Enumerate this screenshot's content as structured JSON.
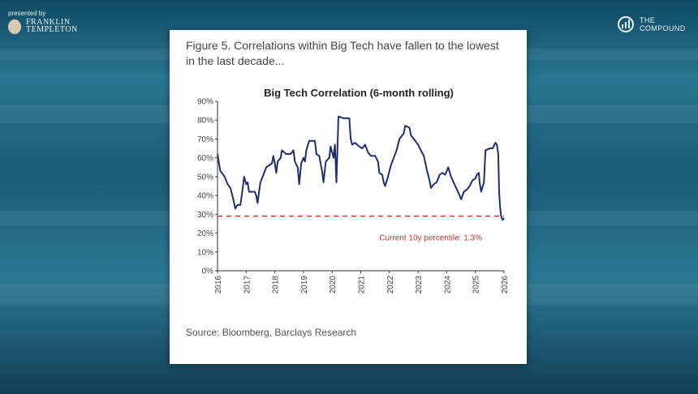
{
  "branding": {
    "presented_by": "presented by",
    "sponsor_line1": "FRANKLIN",
    "sponsor_line2": "TEMPLETON",
    "show_line1": "THE",
    "show_line2": "COMPOUND"
  },
  "figure": {
    "title": "Figure 5. Correlations within Big Tech have fallen to the lowest in the last decade...",
    "source": "Source: Bloomberg, Barclays Research"
  },
  "chart_data": {
    "type": "line",
    "title": "Big Tech Correlation (6-month rolling)",
    "xlabel": "",
    "ylabel": "",
    "xlim": [
      2016,
      2026
    ],
    "ylim": [
      0,
      90
    ],
    "x_ticks": [
      "2016",
      "2017",
      "2018",
      "2019",
      "2020",
      "2021",
      "2022",
      "2023",
      "2024",
      "2025",
      "2026"
    ],
    "y_ticks": [
      "0%",
      "10%",
      "20%",
      "30%",
      "40%",
      "50%",
      "60%",
      "70%",
      "80%",
      "90%"
    ],
    "grid": false,
    "line_color": "#1f2f6e",
    "reference_line": {
      "value": 29,
      "color": "#d0343a",
      "style": "dashed",
      "label": "Current 10y percentile: 1.3%"
    },
    "series": [
      {
        "x": [
          2016.0,
          2016.05,
          2016.1,
          2016.25,
          2016.35,
          2016.45,
          2016.55,
          2016.62,
          2016.7,
          2016.8,
          2016.88,
          2016.93,
          2017.0,
          2017.05,
          2017.1,
          2017.3,
          2017.35,
          2017.4,
          2017.45,
          2017.5,
          2017.6,
          2017.7,
          2017.8,
          2017.9,
          2017.95,
          2018.0,
          2018.05,
          2018.1,
          2018.2,
          2018.25,
          2018.4,
          2018.55,
          2018.65,
          2018.7,
          2018.8,
          2018.85,
          2018.92,
          2019.0,
          2019.05,
          2019.1,
          2019.2,
          2019.4,
          2019.45,
          2019.55,
          2019.65,
          2019.7,
          2019.78,
          2019.9,
          2019.95,
          2020.05,
          2020.1,
          2020.15,
          2020.22,
          2020.4,
          2020.6,
          2020.65,
          2020.7,
          2020.8,
          2020.95,
          2021.05,
          2021.15,
          2021.25,
          2021.35,
          2021.5,
          2021.6,
          2021.65,
          2021.75,
          2021.8,
          2021.85,
          2021.95,
          2022.05,
          2022.15,
          2022.25,
          2022.35,
          2022.45,
          2022.5,
          2022.55,
          2022.7,
          2022.75,
          2022.85,
          2023.0,
          2023.1,
          2023.2,
          2023.3,
          2023.4,
          2023.45,
          2023.55,
          2023.65,
          2023.75,
          2023.85,
          2023.95,
          2024.05,
          2024.15,
          2024.3,
          2024.45,
          2024.5,
          2024.6,
          2024.7,
          2024.8,
          2024.9,
          2025.0,
          2025.05,
          2025.12,
          2025.15,
          2025.2,
          2025.3,
          2025.35,
          2025.5,
          2025.6,
          2025.7,
          2025.75,
          2025.8,
          2025.83,
          2025.86,
          2025.9,
          2025.95,
          2026.0
        ],
        "y": [
          62,
          57,
          53,
          50,
          46,
          44,
          38,
          33,
          35,
          35,
          44,
          50,
          46,
          47,
          42,
          42,
          40,
          36,
          42,
          47,
          51,
          55,
          56,
          57,
          61,
          57,
          52,
          58,
          60,
          64,
          62,
          62,
          64,
          58,
          55,
          46,
          57,
          60,
          58,
          64,
          69,
          69,
          62,
          61,
          53,
          47,
          58,
          60,
          66,
          60,
          67,
          47,
          82,
          81,
          81,
          70,
          67,
          68,
          66,
          65,
          67,
          63,
          61,
          61,
          58,
          52,
          51,
          47,
          45,
          50,
          56,
          60,
          64,
          70,
          72,
          73,
          77,
          76,
          72,
          70,
          67,
          64,
          61,
          54,
          48,
          44,
          46,
          47,
          51,
          52,
          51,
          55,
          50,
          45,
          40,
          38,
          42,
          43,
          45,
          48,
          49,
          51,
          52,
          47,
          42,
          47,
          64,
          65,
          65,
          68,
          67,
          62,
          42,
          34,
          29,
          27,
          28
        ]
      }
    ]
  }
}
